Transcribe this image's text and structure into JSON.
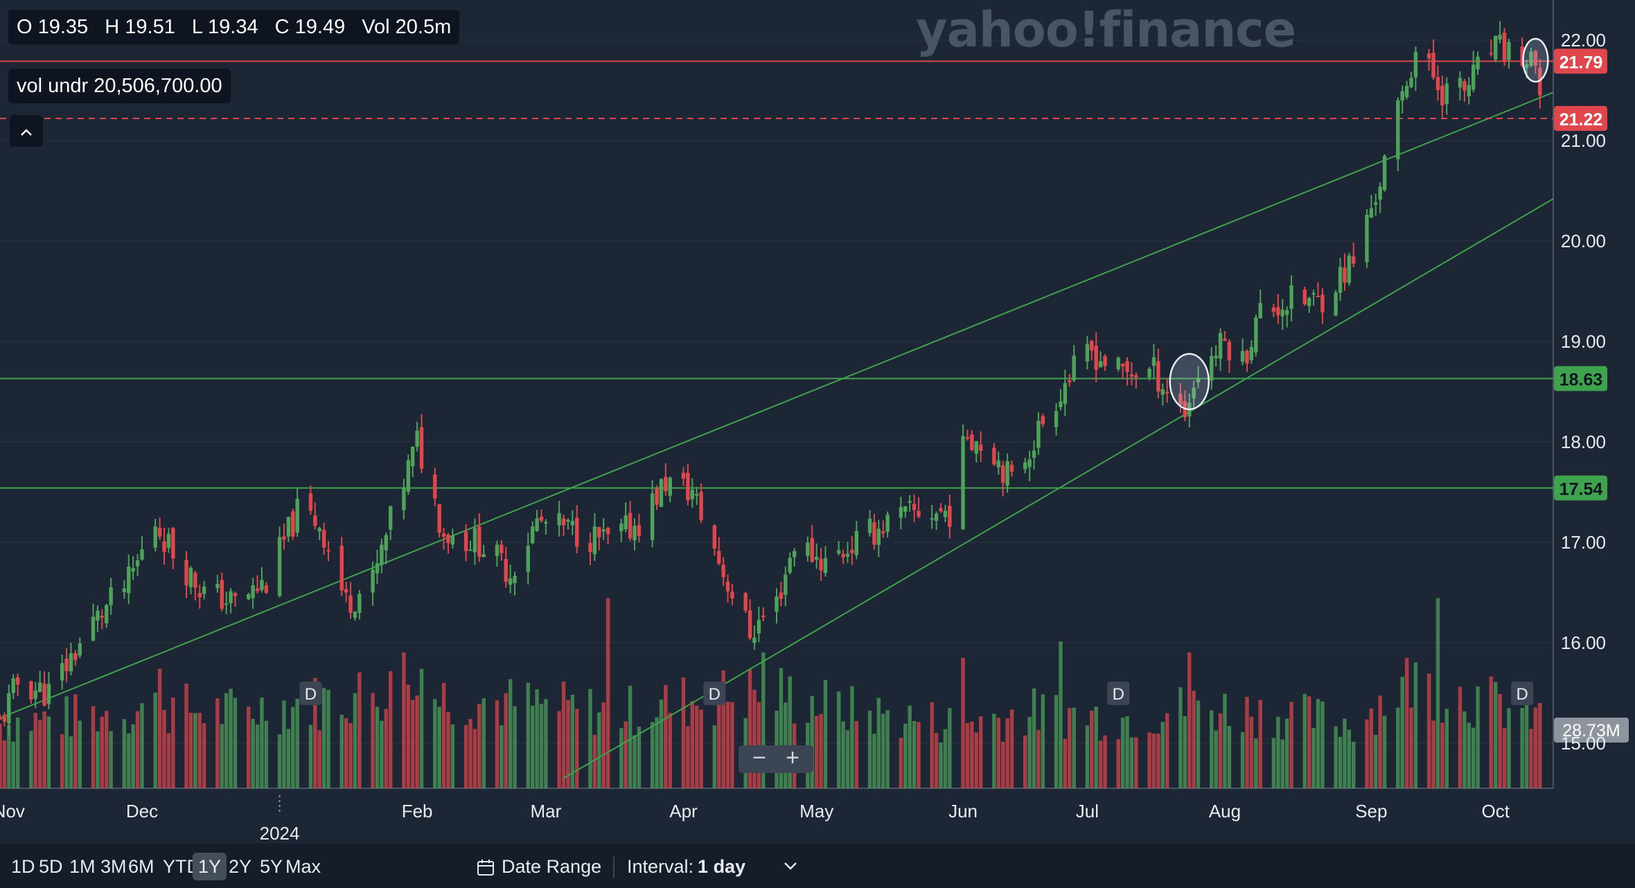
{
  "header": {
    "open": "O 19.35",
    "high": "H 19.51",
    "low": "L 19.34",
    "close": "C 19.49",
    "volume": "Vol 20.5m",
    "vol_indicator": "vol undr  20,506,700.00",
    "collapse_icon": "chevron-up-icon"
  },
  "watermark": "yahoo!finance",
  "range_buttons": [
    "1D",
    "5D",
    "1M",
    "3M",
    "6M",
    "YTD",
    "1Y",
    "2Y",
    "5Y",
    "Max"
  ],
  "active_range": "1Y",
  "date_range_label": "Date Range",
  "interval_label": "Interval:",
  "interval_value": "1 day",
  "zoom": {
    "minus": "−",
    "plus": "+"
  },
  "colors": {
    "up": "#4fa25a",
    "down": "#e0474c",
    "support": "#3fa34d",
    "resistance": "#e0474c",
    "background": "#1c2634"
  },
  "chart_data": {
    "type": "candlestick",
    "x_range": [
      "2023-10-30",
      "2024-10-14"
    ],
    "ylim": [
      14.55,
      22.4
    ],
    "y_ticks": [
      15.0,
      16.0,
      17.0,
      18.0,
      19.0,
      20.0,
      21.0,
      22.0
    ],
    "x_ticks": [
      {
        "label": "Nov",
        "date": "2023-11-01"
      },
      {
        "label": "Dec",
        "date": "2023-12-01"
      },
      {
        "label": "2024",
        "date": "2024-01-01",
        "year": true
      },
      {
        "label": "Feb",
        "date": "2024-02-01"
      },
      {
        "label": "Mar",
        "date": "2024-03-01"
      },
      {
        "label": "Apr",
        "date": "2024-04-01"
      },
      {
        "label": "May",
        "date": "2024-05-01"
      },
      {
        "label": "Jun",
        "date": "2024-06-03"
      },
      {
        "label": "Jul",
        "date": "2024-07-01"
      },
      {
        "label": "Aug",
        "date": "2024-08-01"
      },
      {
        "label": "Sep",
        "date": "2024-09-03"
      },
      {
        "label": "Oct",
        "date": "2024-10-01"
      }
    ],
    "waypoints": [
      [
        "2023-10-30",
        15.2
      ],
      [
        "2023-11-03",
        15.6
      ],
      [
        "2023-11-10",
        15.5
      ],
      [
        "2023-11-20",
        16.2
      ],
      [
        "2023-11-28",
        16.6
      ],
      [
        "2023-12-04",
        17.2
      ],
      [
        "2023-12-08",
        16.9
      ],
      [
        "2023-12-15",
        16.5
      ],
      [
        "2023-12-22",
        16.4
      ],
      [
        "2023-12-29",
        16.6
      ],
      [
        "2024-01-05",
        17.3
      ],
      [
        "2024-01-10",
        17.2
      ],
      [
        "2024-01-16",
        16.4
      ],
      [
        "2024-01-22",
        16.6
      ],
      [
        "2024-01-26",
        17.2
      ],
      [
        "2024-02-01",
        18.0
      ],
      [
        "2024-02-07",
        17.1
      ],
      [
        "2024-02-15",
        17.0
      ],
      [
        "2024-02-22",
        16.7
      ],
      [
        "2024-02-28",
        17.2
      ],
      [
        "2024-03-08",
        17.1
      ],
      [
        "2024-03-15",
        17.0
      ],
      [
        "2024-03-22",
        17.2
      ],
      [
        "2024-03-28",
        17.6
      ],
      [
        "2024-04-03",
        17.5
      ],
      [
        "2024-04-10",
        16.7
      ],
      [
        "2024-04-16",
        16.1
      ],
      [
        "2024-04-22",
        16.4
      ],
      [
        "2024-04-26",
        17.0
      ],
      [
        "2024-05-03",
        16.8
      ],
      [
        "2024-05-10",
        17.0
      ],
      [
        "2024-05-17",
        17.2
      ],
      [
        "2024-05-24",
        17.3
      ],
      [
        "2024-05-31",
        17.3
      ],
      [
        "2024-06-04",
        18.1
      ],
      [
        "2024-06-10",
        17.9
      ],
      [
        "2024-06-14",
        17.6
      ],
      [
        "2024-06-21",
        18.2
      ],
      [
        "2024-06-26",
        18.6
      ],
      [
        "2024-07-02",
        18.9
      ],
      [
        "2024-07-08",
        18.7
      ],
      [
        "2024-07-16",
        18.7
      ],
      [
        "2024-07-23",
        18.3
      ],
      [
        "2024-07-26",
        18.7
      ],
      [
        "2024-08-01",
        19.0
      ],
      [
        "2024-08-05",
        18.8
      ],
      [
        "2024-08-09",
        19.3
      ],
      [
        "2024-08-16",
        19.4
      ],
      [
        "2024-08-22",
        19.4
      ],
      [
        "2024-08-30",
        19.8
      ],
      [
        "2024-09-05",
        20.6
      ],
      [
        "2024-09-11",
        21.6
      ],
      [
        "2024-09-13",
        21.9
      ],
      [
        "2024-09-19",
        21.5
      ],
      [
        "2024-09-24",
        21.5
      ],
      [
        "2024-09-30",
        21.9
      ],
      [
        "2024-10-04",
        21.9
      ],
      [
        "2024-10-10",
        21.7
      ],
      [
        "2024-10-11",
        21.3
      ]
    ],
    "volume_waypoints": [
      [
        "2023-10-30",
        12
      ],
      [
        "2023-11-15",
        13
      ],
      [
        "2023-12-05",
        15
      ],
      [
        "2023-12-20",
        14
      ],
      [
        "2024-01-10",
        16
      ],
      [
        "2024-01-25",
        18
      ],
      [
        "2024-02-05",
        17
      ],
      [
        "2024-03-01",
        15
      ],
      [
        "2024-03-18",
        14
      ],
      [
        "2024-04-01",
        16
      ],
      [
        "2024-04-20",
        18
      ],
      [
        "2024-05-10",
        14
      ],
      [
        "2024-06-01",
        12
      ],
      [
        "2024-06-20",
        14
      ],
      [
        "2024-07-10",
        13
      ],
      [
        "2024-07-25",
        15
      ],
      [
        "2024-08-10",
        14
      ],
      [
        "2024-08-30",
        12
      ],
      [
        "2024-09-12",
        20
      ],
      [
        "2024-10-11",
        13
      ]
    ],
    "volume_spikes": [
      [
        "2023-12-05",
        22
      ],
      [
        "2024-01-29",
        25
      ],
      [
        "2024-02-02",
        22
      ],
      [
        "2024-03-15",
        35
      ],
      [
        "2024-04-19",
        25
      ],
      [
        "2024-06-03",
        24
      ],
      [
        "2024-06-25",
        27
      ],
      [
        "2024-07-24",
        25
      ],
      [
        "2024-09-18",
        35
      ]
    ],
    "volume_max": 38,
    "volume_label": "28.73M",
    "horizontal_lines": [
      {
        "value": 21.79,
        "label": "21.79",
        "style": "solid",
        "color": "#e0474c"
      },
      {
        "value": 21.22,
        "label": "21.22",
        "style": "dashed",
        "color": "#e0474c"
      },
      {
        "value": 18.63,
        "label": "18.63",
        "style": "solid",
        "color": "#3fa34d"
      },
      {
        "value": 17.54,
        "label": "17.54",
        "style": "solid",
        "color": "#3fa34d"
      }
    ],
    "trend_lines": [
      {
        "from": [
          "2023-10-30",
          15.25
        ],
        "to": [
          "2024-10-14",
          21.48
        ]
      },
      {
        "from": [
          "2024-03-05",
          14.65
        ],
        "to": [
          "2024-10-14",
          20.42
        ]
      }
    ],
    "annotations": [
      {
        "type": "ellipse",
        "date": "2024-07-24",
        "value": 18.6
      },
      {
        "type": "ellipse",
        "date": "2024-10-10",
        "value": 21.8
      }
    ],
    "dividend_markers": [
      "2024-01-08",
      "2024-04-08",
      "2024-07-08",
      "2024-10-07"
    ],
    "dividend_label": "D"
  }
}
